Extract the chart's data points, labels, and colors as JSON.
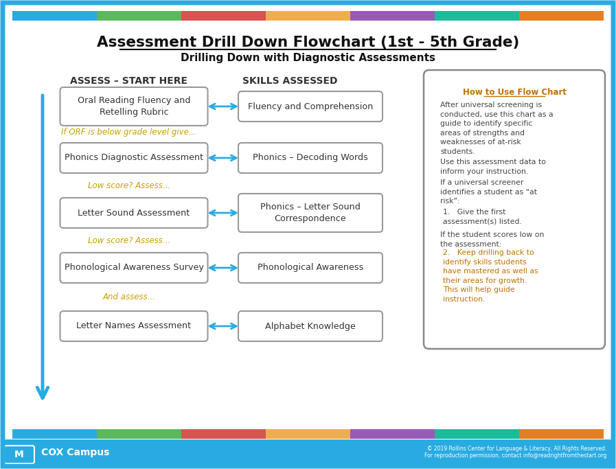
{
  "title": "Assessment Drill Down Flowchart (1st - 5th Grade)",
  "subtitle": "Drilling Down with Diagnostic Assessments",
  "col1_header": "ASSESS – START HERE",
  "col2_header": "SKILLS ASSESSED",
  "left_boxes": [
    "Oral Reading Fluency and\nRetelling Rubric",
    "Phonics Diagnostic Assessment",
    "Letter Sound Assessment",
    "Phonological Awareness Survey",
    "Letter Names Assessment"
  ],
  "right_boxes": [
    "Fluency and Comprehension",
    "Phonics – Decoding Words",
    "Phonics – Letter Sound\nCorrespondence",
    "Phonological Awareness",
    "Alphabet Knowledge"
  ],
  "between_labels": [
    "If ORF is below grade level give...",
    "Low score? Assess...",
    "Low score? Assess...",
    "And assess..."
  ],
  "sidebar_title": "How to Use Flow Chart",
  "sidebar_para1": "After universal screening is\nconducted, use this chart as a\nguide to identify specific\nareas of strengths and\nweaknesses of at-risk\nstudents.",
  "sidebar_para2": "Use this assessment data to\ninform your instruction.",
  "sidebar_para3": "If a universal screener\nidentifies a student as “at\nrisk”:",
  "sidebar_item1": "Give the first\nassessment(s) listed.",
  "sidebar_para4": "If the student scores low on\nthe assessment:",
  "sidebar_item2": "Keep drilling back to\nidentify skills students\nhave mastered as well as\ntheir areas for growth.\nThis will help guide\ninstruction.",
  "footer_right_line1": "© 2019 Rollins Center for Language & Literacy, All Rights Reserved.",
  "footer_right_line2": "For reproduction permission, contact info@readrightfromthestart.org",
  "bg_color": "#ffffff",
  "outer_border_color": "#29abe2",
  "box_border_color": "#999999",
  "arrow_color": "#29abe2",
  "title_color": "#111111",
  "col_header_color": "#333333",
  "between_color": "#c8a000",
  "sidebar_title_color": "#c07000",
  "sidebar_text_color": "#444444",
  "sidebar_item2_color": "#c07000",
  "footer_bg": "#29abe2",
  "footer_text_color": "#ffffff",
  "stripe_colors": [
    "#29abe2",
    "#5cb85c",
    "#d9534f",
    "#f0ad4e",
    "#9b59b6",
    "#1abc9c",
    "#e67e22"
  ]
}
